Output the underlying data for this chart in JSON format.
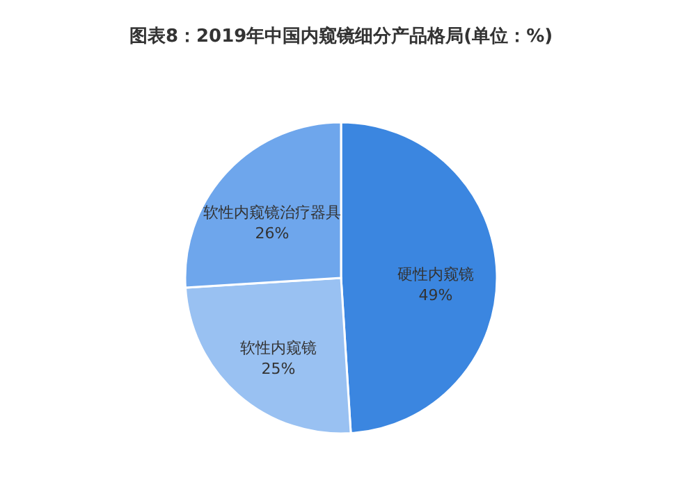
{
  "chart_data": {
    "type": "pie",
    "title": "图表8：2019年中国内窥镜细分产品格局(单位：%)",
    "categories": [
      "硬性内窥镜",
      "软性内窥镜",
      "软性内窥镜治疗器具"
    ],
    "values": [
      49,
      25,
      26
    ],
    "colors": [
      "#3b86e0",
      "#99c1f2",
      "#6ea6ec"
    ],
    "value_labels": [
      "49%",
      "25%",
      "26%"
    ]
  }
}
